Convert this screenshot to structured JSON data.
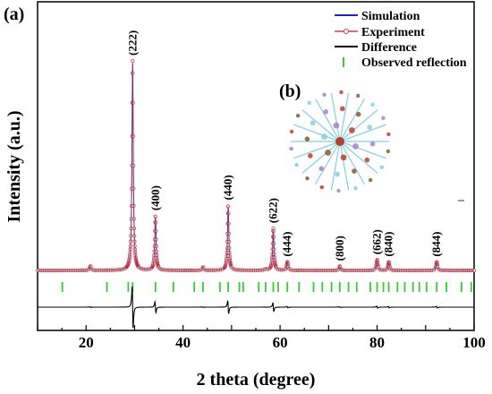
{
  "chart_data": {
    "type": "line",
    "panel_label_a": "(a)",
    "panel_label_b": "(b)",
    "xlabel": "2 theta (degree)",
    "ylabel": "Intensity (a.u.)",
    "xlim": [
      10,
      100
    ],
    "x_ticks": [
      20,
      40,
      60,
      80,
      100
    ],
    "y_ticks_labeled": false,
    "grid": false,
    "legend_position": "top-right",
    "legend": [
      {
        "label": "Simulation",
        "color": "#1f1fd6",
        "style": "line"
      },
      {
        "label": "Experiment",
        "color": "#d04040",
        "style": "line-with-circles"
      },
      {
        "label": "Difference",
        "color": "#000000",
        "style": "line"
      },
      {
        "label": "Observed reflection",
        "color": "#33cc33",
        "style": "tick"
      }
    ],
    "peaks": [
      {
        "hkl": "(222)",
        "two_theta": 29.6,
        "rel_intensity": 100
      },
      {
        "hkl": "(400)",
        "two_theta": 34.3,
        "rel_intensity": 26
      },
      {
        "hkl": "(440)",
        "two_theta": 49.3,
        "rel_intensity": 31
      },
      {
        "hkl": "(622)",
        "two_theta": 58.6,
        "rel_intensity": 20
      },
      {
        "hkl": "(444)",
        "two_theta": 61.5,
        "rel_intensity": 4
      },
      {
        "hkl": "(800)",
        "two_theta": 72.3,
        "rel_intensity": 2
      },
      {
        "hkl": "(662)",
        "two_theta": 80.0,
        "rel_intensity": 5
      },
      {
        "hkl": "(840)",
        "two_theta": 82.4,
        "rel_intensity": 4
      },
      {
        "hkl": "(844)",
        "two_theta": 92.3,
        "rel_intensity": 4
      }
    ],
    "minor_peaks": [
      {
        "two_theta": 20.9,
        "rel_intensity": 2
      },
      {
        "two_theta": 44.1,
        "rel_intensity": 1.5
      },
      {
        "two_theta": 57.0,
        "rel_intensity": 1
      }
    ],
    "observed_reflections": [
      15.1,
      24.3,
      28.7,
      29.6,
      34.3,
      38.0,
      42.3,
      44.1,
      47.6,
      49.3,
      51.6,
      52.4,
      55.6,
      57.0,
      58.6,
      59.6,
      61.5,
      63.9,
      66.9,
      68.7,
      70.6,
      72.3,
      74.1,
      75.8,
      78.6,
      80.0,
      81.3,
      82.4,
      84.2,
      85.7,
      87.4,
      88.7,
      90.2,
      92.3,
      94.3,
      97.4,
      99.4
    ],
    "series": [
      {
        "name": "Simulation"
      },
      {
        "name": "Experiment"
      },
      {
        "name": "Difference"
      },
      {
        "name": "Observed reflection"
      }
    ]
  }
}
